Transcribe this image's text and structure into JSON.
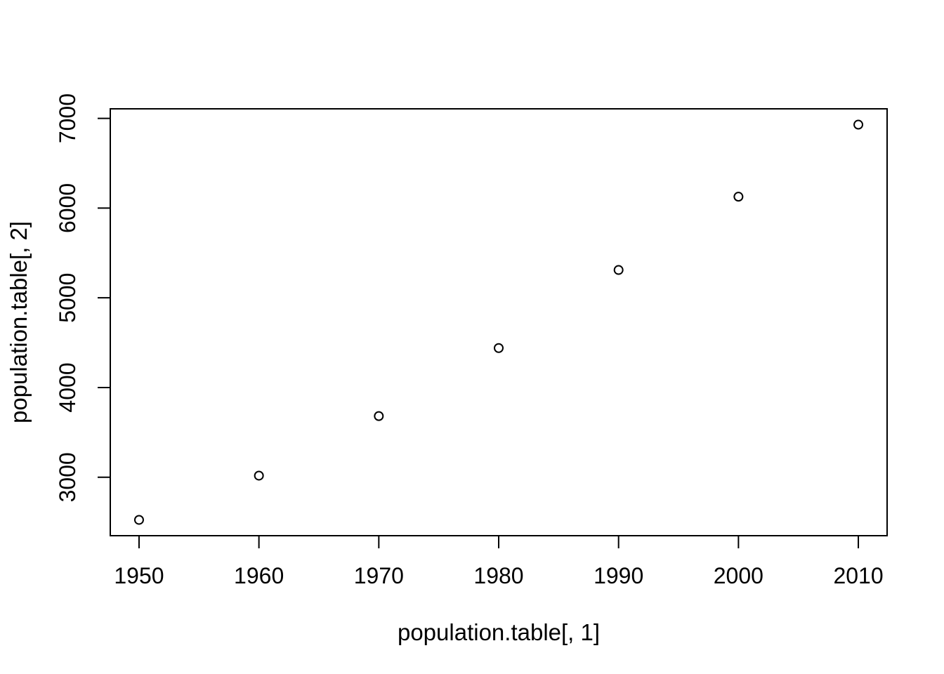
{
  "chart_data": {
    "type": "scatter",
    "title": "",
    "xlabel": "population.table[, 1]",
    "ylabel": "population.table[, 2]",
    "x": [
      1950,
      1960,
      1970,
      1980,
      1990,
      2000,
      2010
    ],
    "y": [
      2525,
      3018,
      3682,
      4440,
      5310,
      6127,
      6930
    ],
    "x_ticks": [
      "1950",
      "1960",
      "1970",
      "1980",
      "1990",
      "2000",
      "2010"
    ],
    "y_ticks": [
      "3000",
      "4000",
      "5000",
      "6000",
      "7000"
    ],
    "xlim": [
      1947.6,
      2012.4
    ],
    "ylim": [
      2348.8,
      7106.2
    ],
    "point_style": "open-circle",
    "grid": false,
    "legend": "none",
    "colors": {
      "background": "#ffffff",
      "foreground": "#000000"
    }
  }
}
